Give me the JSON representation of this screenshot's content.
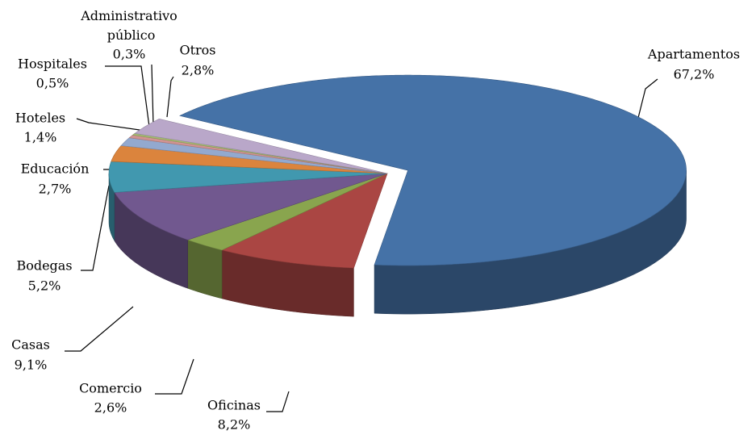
{
  "chart_data": {
    "type": "pie3d",
    "categories": [
      "Apartamentos",
      "Oficinas",
      "Comercio",
      "Casas",
      "Bodegas",
      "Educación",
      "Hoteles",
      "Hospitales",
      "Administrativo público",
      "Otros"
    ],
    "values": [
      67.2,
      8.2,
      2.6,
      9.1,
      5.2,
      2.7,
      1.4,
      0.5,
      0.3,
      2.8
    ],
    "value_labels": [
      "67,2%",
      "8,2%",
      "2,6%",
      "9,1%",
      "5,2%",
      "2,7%",
      "1,4%",
      "0,5%",
      "0,3%",
      "2,8%"
    ],
    "colors": [
      "#4572a7",
      "#aa4643",
      "#89a54e",
      "#71588f",
      "#4198af",
      "#db843d",
      "#93a9cf",
      "#d19392",
      "#a5bc70",
      "#b9a7c9"
    ]
  }
}
